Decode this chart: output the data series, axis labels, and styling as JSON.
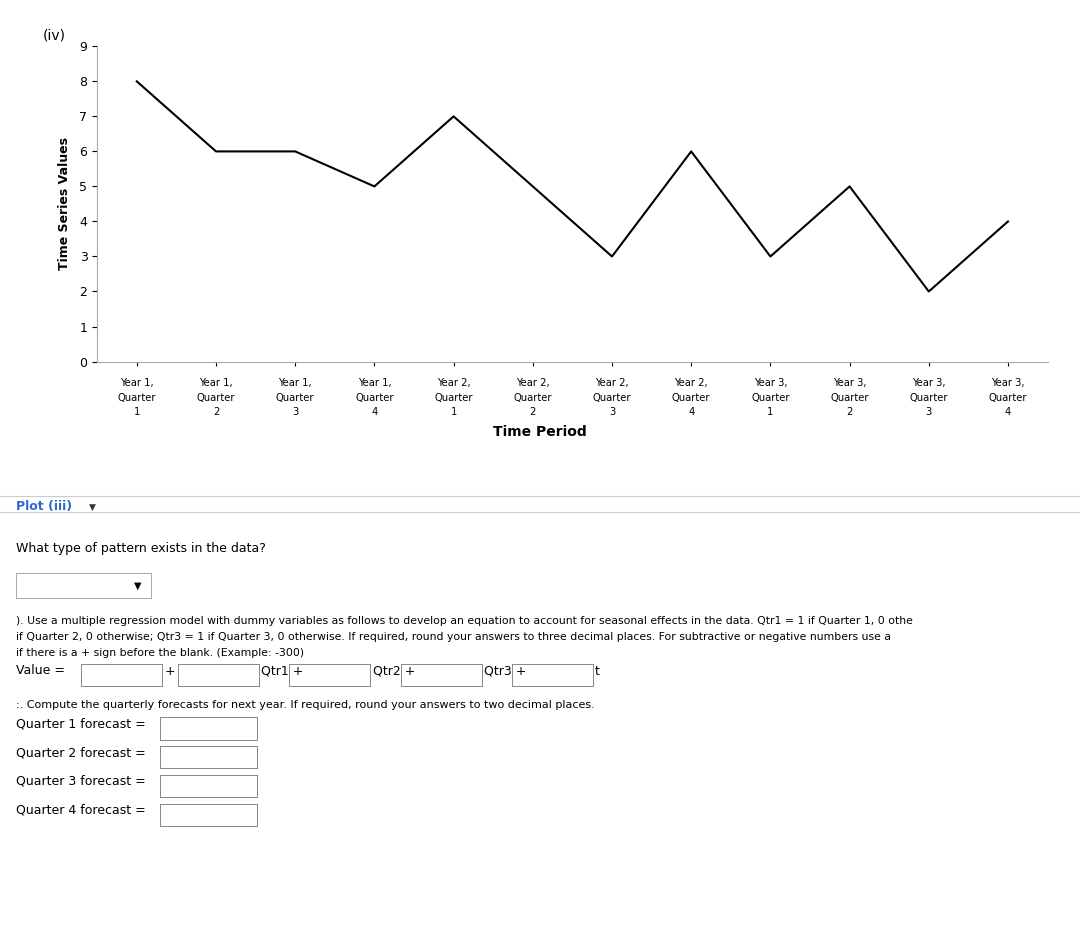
{
  "time_series_values": [
    8,
    6,
    6,
    5,
    7,
    5,
    3,
    6,
    3,
    5,
    2,
    4
  ],
  "x_labels": [
    [
      "Year 1,",
      "Quarter",
      "1"
    ],
    [
      "Year 1,",
      "Quarter",
      "2"
    ],
    [
      "Year 1,",
      "Quarter",
      "3"
    ],
    [
      "Year 1,",
      "Quarter",
      "4"
    ],
    [
      "Year 2,",
      "Quarter",
      "1"
    ],
    [
      "Year 2,",
      "Quarter",
      "2"
    ],
    [
      "Year 2,",
      "Quarter",
      "3"
    ],
    [
      "Year 2,",
      "Quarter",
      "4"
    ],
    [
      "Year 3,",
      "Quarter",
      "1"
    ],
    [
      "Year 3,",
      "Quarter",
      "2"
    ],
    [
      "Year 3,",
      "Quarter",
      "3"
    ],
    [
      "Year 3,",
      "Quarter",
      "4"
    ]
  ],
  "ylabel": "Time Series Values",
  "xlabel": "Time Period",
  "title_label": "(iv)",
  "ylim": [
    0,
    9
  ],
  "yticks": [
    0,
    1,
    2,
    3,
    4,
    5,
    6,
    7,
    8,
    9
  ],
  "line_color": "#000000",
  "background_color": "#ffffff",
  "plot_label": "Plot (iii)",
  "reg_text1": "). Use a multiple regression model with dummy variables as follows to develop an equation to account for seasonal effects in the data. Qtr1 = 1 if Quarter 1, 0 othe",
  "reg_text2": "if Quarter 2, 0 otherwise; Qtr3 = 1 if Quarter 3, 0 otherwise. If required, round your answers to three decimal places. For subtractive or negative numbers use a",
  "reg_text3": "if there is a + sign before the blank. (Example: -300)",
  "what_pattern": "What type of pattern exists in the data?",
  "compute_text": ":. Compute the quarterly forecasts for next year. If required, round your answers to two decimal places.",
  "forecast_labels": [
    "Quarter 1 forecast =",
    "Quarter 2 forecast =",
    "Quarter 3 forecast =",
    "Quarter 4 forecast ="
  ]
}
